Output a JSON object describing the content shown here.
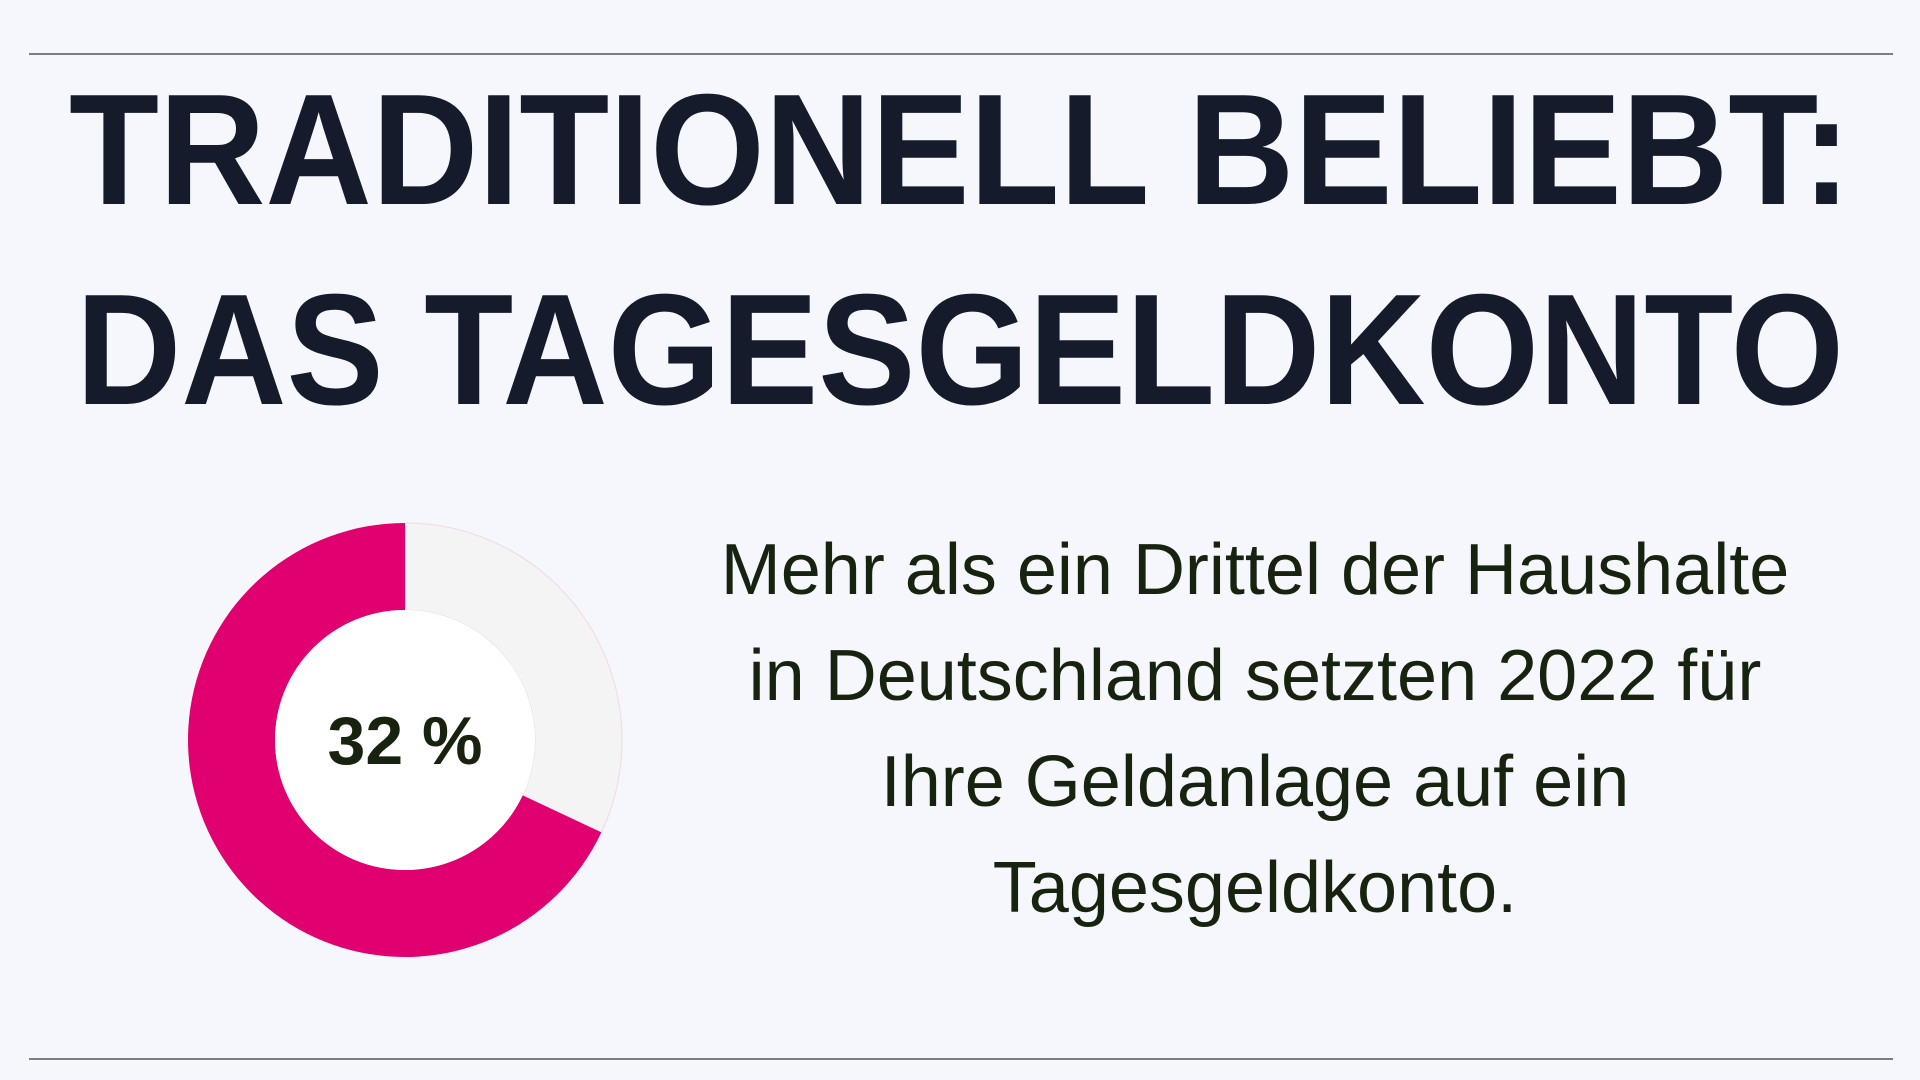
{
  "header": {
    "title_lines": [
      "TRADITIONELL BELIEBT:",
      "DAS TAGESGELDKONTO"
    ]
  },
  "chart_data": {
    "type": "pie",
    "values": [
      32,
      68
    ],
    "value_labels": [
      "32 %",
      null
    ],
    "colors": [
      "#f5f4f5",
      "#e0006f"
    ]
  },
  "description": {
    "lines": [
      "Mehr als ein Drittel der Haushalte",
      "in Deutschland setzten 2022 für",
      "Ihre Geldanlage auf ein",
      "Tagesgeldkonto."
    ]
  }
}
